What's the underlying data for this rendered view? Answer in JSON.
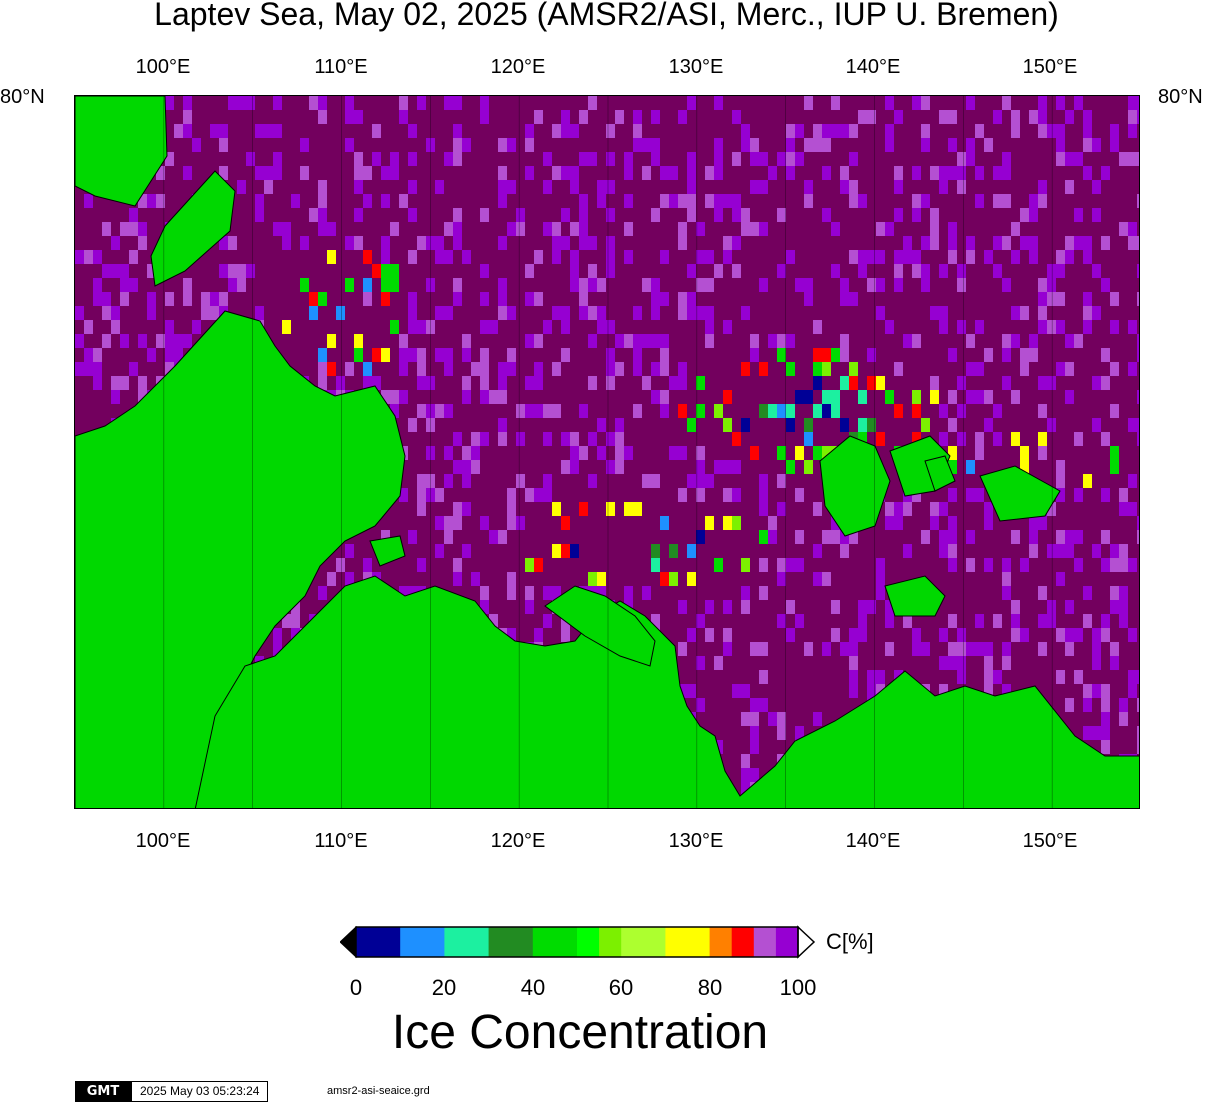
{
  "title": "Laptev Sea, May 02, 2025 (AMSR2/ASI, Merc., IUP U. Bremen)",
  "map": {
    "projection": "Mercator",
    "lon_range": [
      95,
      155
    ],
    "lat_edge_label": "80°N",
    "lon_labels": [
      "100°E",
      "110°E",
      "120°E",
      "130°E",
      "140°E",
      "150°E"
    ],
    "lon_label_values": [
      100,
      110,
      120,
      130,
      140,
      150
    ],
    "colors": {
      "land": "#00d800",
      "open_water_full_ice": "#73005e",
      "frame": "#000000"
    }
  },
  "colorbar": {
    "title": "Ice Concentration",
    "unit": "C[%]",
    "ticks": [
      "0",
      "20",
      "40",
      "60",
      "80",
      "100"
    ],
    "colors": [
      "#000096",
      "#1e90ff",
      "#1cf0a0",
      "#228b22",
      "#00dc00",
      "#00ff00",
      "#7cf000",
      "#adff2f",
      "#ffff00",
      "#ff8000",
      "#ff0000",
      "#b450d2",
      "#9600d2"
    ]
  },
  "footer": {
    "logo": "GMT",
    "timestamp": "2025 May 03 05:23:24",
    "filename": "amsr2-asi-seaice.grd"
  }
}
